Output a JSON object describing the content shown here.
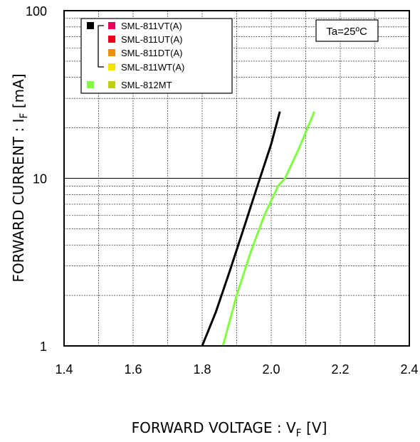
{
  "chart_data": {
    "type": "line",
    "title": "",
    "xlabel": "FORWARD VOLTAGE : V",
    "xlabel_sub": "F",
    "xlabel_unit": " [V]",
    "ylabel": "FORWARD CURRENT : I",
    "ylabel_sub": "F",
    "ylabel_unit": " [mA]",
    "xlim": [
      1.4,
      2.4
    ],
    "ylim": [
      1,
      100
    ],
    "yscale": "log",
    "grid": true,
    "x_ticks": [
      1.4,
      1.6,
      1.8,
      2.0,
      2.2,
      2.4
    ],
    "x_tick_labels": [
      "1.4",
      "1.6",
      "1.8",
      "2.0",
      "2.2",
      "2.4"
    ],
    "y_ticks": [
      1,
      10,
      100
    ],
    "y_tick_labels": [
      "1",
      "10",
      "100"
    ],
    "annotation": "Ta=25ºC",
    "legend_position": "top-left",
    "legend": [
      {
        "name": "SML-811VT(A)",
        "color": "#e8005a"
      },
      {
        "name": "SML-811UT(A)",
        "color": "#e8001c"
      },
      {
        "name": "SML-811DT(A)",
        "color": "#f09000"
      },
      {
        "name": "SML-811WT(A)",
        "color": "#f5e000"
      },
      {
        "name": "SML-812MT",
        "color": "#bfd000"
      }
    ],
    "series": [
      {
        "color": "#000000",
        "legend_members": [
          0,
          1,
          2,
          3
        ],
        "x": [
          1.8,
          1.84,
          1.88,
          1.92,
          1.96,
          2.0,
          2.025
        ],
        "y": [
          1,
          1.6,
          2.8,
          5.0,
          9.0,
          16.0,
          25.0
        ]
      },
      {
        "color": "#7fff3f",
        "legend_members": [
          4
        ],
        "x": [
          1.86,
          1.9,
          1.94,
          1.98,
          2.02,
          2.04,
          2.08,
          2.125
        ],
        "y": [
          1,
          2.0,
          3.6,
          6.0,
          9.0,
          10.0,
          15.0,
          25.0
        ]
      }
    ]
  }
}
